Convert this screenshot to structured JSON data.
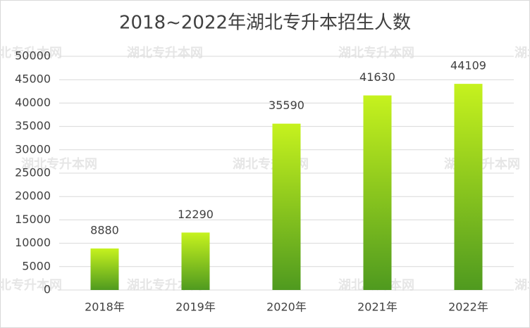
{
  "chart_data": {
    "type": "bar",
    "title": "2018~2022年湖北专升本招生人数",
    "categories": [
      "2018年",
      "2019年",
      "2020年",
      "2021年",
      "2022年"
    ],
    "values": [
      8880,
      12290,
      35590,
      41630,
      44109
    ],
    "gradient": [
      "#c6f21e",
      "#4f9a1f"
    ],
    "ylim": [
      0,
      50000
    ],
    "yticks": [
      0,
      5000,
      10000,
      15000,
      20000,
      25000,
      30000,
      35000,
      40000,
      45000,
      50000
    ],
    "grid": true
  },
  "watermark": "湖北专升本网"
}
